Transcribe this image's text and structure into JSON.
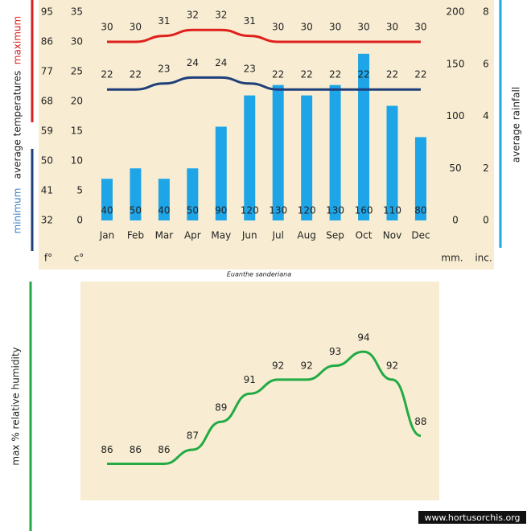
{
  "chart_data": [
    {
      "type": "combo",
      "title": "Euanthe sanderiana",
      "categories": [
        "Jan",
        "Feb",
        "Mar",
        "Apr",
        "May",
        "Jun",
        "Jul",
        "Aug",
        "Sep",
        "Oct",
        "Nov",
        "Dec"
      ],
      "y_label": "average temperatures",
      "y2_label": "average rainfall",
      "y_unit": "c°",
      "y3_unit": "f°",
      "y2_unit": "mm.",
      "y4_unit": "inc.",
      "ylim": [
        0,
        35
      ],
      "yticks": [
        0,
        5,
        10,
        15,
        20,
        25,
        30,
        35
      ],
      "y3lim": [
        32,
        95
      ],
      "y3ticks": [
        32,
        41,
        50,
        59,
        68,
        77,
        86,
        95
      ],
      "y2lim": [
        0,
        200
      ],
      "y2ticks": [
        0,
        50,
        100,
        150,
        200
      ],
      "y4lim": [
        0,
        8
      ],
      "y4ticks": [
        0,
        2,
        4,
        6,
        8
      ],
      "series": [
        {
          "name": "maximum",
          "kind": "line",
          "axis": "y",
          "color": "#e0201c",
          "values": [
            30,
            30,
            31,
            32,
            32,
            31,
            30,
            30,
            30,
            30,
            30,
            30
          ]
        },
        {
          "name": "minimum",
          "kind": "line",
          "axis": "y",
          "color": "#1f3f7a",
          "values": [
            22,
            22,
            23,
            24,
            24,
            23,
            22,
            22,
            22,
            22,
            22,
            22
          ]
        },
        {
          "name": "average rainfall",
          "kind": "bar",
          "axis": "y2",
          "color": "#1ea5e8",
          "values": [
            40,
            50,
            40,
            50,
            90,
            120,
            130,
            120,
            130,
            160,
            110,
            80
          ]
        }
      ]
    },
    {
      "type": "line",
      "y_label": "max % relative humidity",
      "annotation": "www.hortusorchis.org",
      "ylim": [
        83.5,
        99
      ],
      "series": [
        {
          "name": "max % relative humidity",
          "color": "#22aa44",
          "values": [
            86,
            86,
            86,
            87,
            89,
            91,
            92,
            92,
            93,
            94,
            92,
            88
          ]
        }
      ]
    }
  ]
}
